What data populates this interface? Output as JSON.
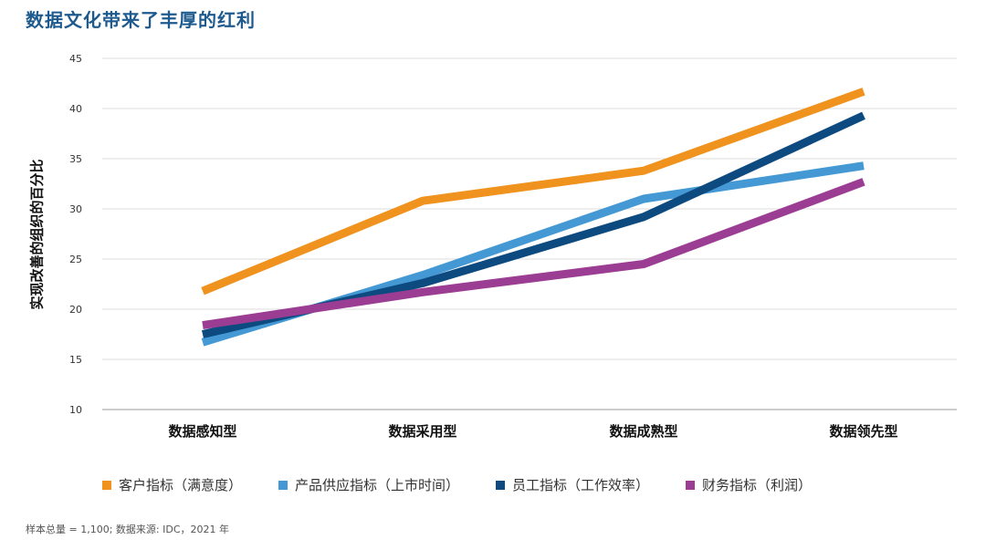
{
  "title": "数据文化带来了丰厚的红利",
  "footer": "样本总量 = 1,100; 数据来源: IDC，2021 年",
  "chart_data": {
    "type": "line",
    "title": "数据文化带来了丰厚的红利",
    "xlabel": "",
    "ylabel": "实现改善的组织的百分比",
    "ylim": [
      10,
      45
    ],
    "yticks": [
      10,
      15,
      20,
      25,
      30,
      35,
      40,
      45
    ],
    "grid": true,
    "legend": "bottom",
    "categories": [
      "数据感知型",
      "数据采用型",
      "数据成熟型",
      "数据领先型"
    ],
    "series": [
      {
        "name": "客户指标（满意度）",
        "color": "#f0921e",
        "values": [
          21.8,
          30.8,
          33.8,
          41.7
        ]
      },
      {
        "name": "产品供应指标（上市时间）",
        "color": "#4499d4",
        "values": [
          16.7,
          23.4,
          31.0,
          34.3
        ]
      },
      {
        "name": "员工指标（工作效率）",
        "color": "#0d4a80",
        "values": [
          17.5,
          22.6,
          29.2,
          39.3
        ]
      },
      {
        "name": "财务指标（利润）",
        "color": "#9b3d92",
        "values": [
          18.4,
          21.7,
          24.5,
          32.7
        ]
      }
    ]
  }
}
